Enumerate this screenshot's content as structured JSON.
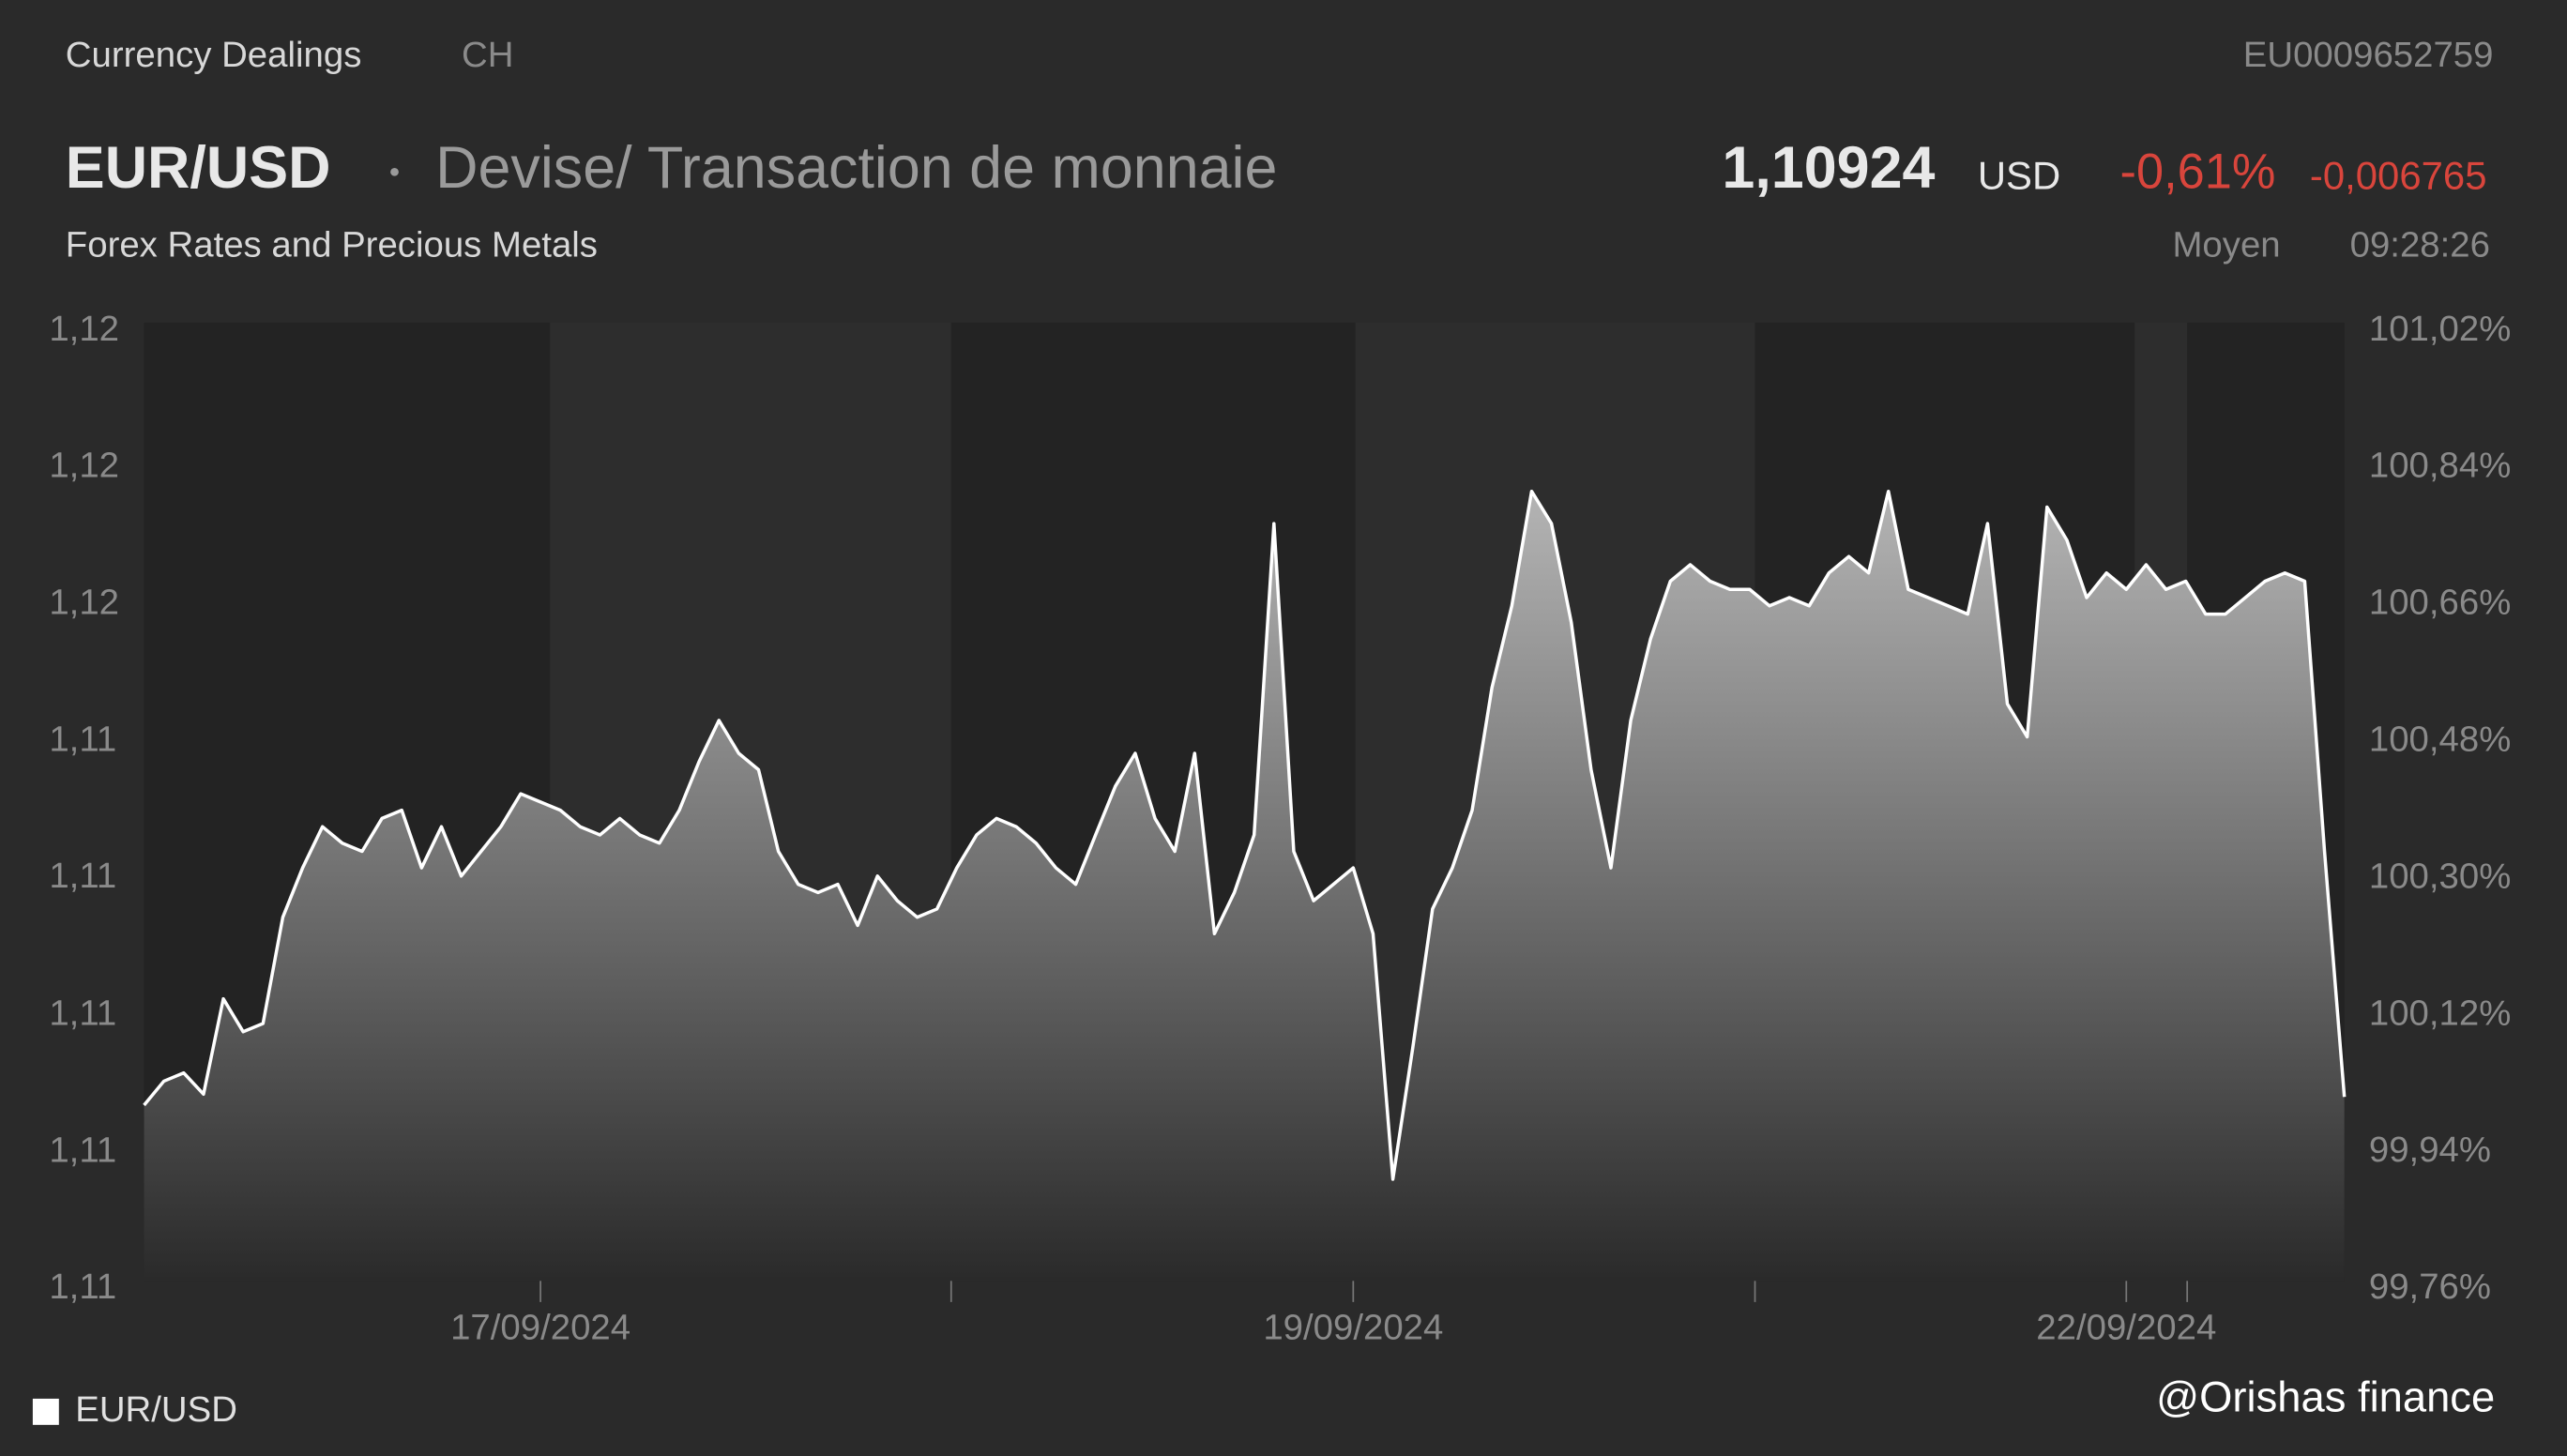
{
  "header": {
    "source": "Currency Dealings",
    "market": "CH",
    "isin": "EU0009652759",
    "symbol": "EUR/USD",
    "description": "Devise/ Transaction de monnaie",
    "subtitle": "Forex Rates and Precious Metals",
    "price": "1,10924",
    "currency": "USD",
    "change_pct": "-0,61%",
    "change_abs": "-0,006765",
    "price_type": "Moyen",
    "time": "09:28:26"
  },
  "watermark": "@Orishas finance",
  "chart_data": {
    "type": "area",
    "categories": [
      null,
      null,
      null,
      null,
      null,
      null,
      null,
      null,
      null,
      null,
      null,
      null,
      null,
      null,
      null,
      null,
      null,
      null,
      null,
      null,
      "17/09/2024",
      null,
      null,
      null,
      null,
      null,
      null,
      null,
      null,
      null,
      null,
      null,
      null,
      null,
      null,
      null,
      null,
      null,
      null,
      null,
      null,
      null,
      null,
      null,
      null,
      null,
      null,
      null,
      null,
      null,
      null,
      null,
      null,
      null,
      null,
      null,
      null,
      null,
      null,
      null,
      null,
      "19/09/2024",
      null,
      null,
      null,
      null,
      null,
      null,
      null,
      null,
      null,
      null,
      null,
      null,
      null,
      null,
      null,
      null,
      null,
      null,
      null,
      null,
      null,
      null,
      null,
      null,
      null,
      null,
      null,
      null,
      null,
      null,
      null,
      null,
      null,
      null,
      null,
      null,
      null,
      null,
      "22/09/2024",
      null,
      null,
      null,
      null,
      null,
      null,
      null,
      null,
      null,
      null,
      null
    ],
    "series": [
      {
        "name": "EUR/USD",
        "color": "#ffffff",
        "values": [
          1.10902,
          1.10937,
          1.10949,
          1.10918,
          1.11057,
          1.11009,
          1.11021,
          1.11176,
          1.11248,
          1.11308,
          1.11284,
          1.11272,
          1.1132,
          1.11332,
          1.11248,
          1.11308,
          1.11236,
          1.11272,
          1.11308,
          1.11356,
          1.11344,
          1.11332,
          1.11308,
          1.11296,
          1.1132,
          1.11296,
          1.11284,
          1.11332,
          1.11403,
          1.11463,
          1.11415,
          1.11391,
          1.11272,
          1.11224,
          1.11212,
          1.11224,
          1.11164,
          1.11236,
          1.112,
          1.11176,
          1.11188,
          1.11248,
          1.11296,
          1.1132,
          1.11308,
          1.11284,
          1.11248,
          1.11224,
          1.11296,
          1.11367,
          1.11415,
          1.1132,
          1.11272,
          1.11415,
          1.11152,
          1.11212,
          1.11296,
          1.1175,
          1.11272,
          1.112,
          1.11224,
          1.11248,
          1.11152,
          1.10794,
          1.10985,
          1.11188,
          1.11248,
          1.11332,
          1.11511,
          1.1163,
          1.11797,
          1.1175,
          1.11606,
          1.11391,
          1.11248,
          1.11463,
          1.11582,
          1.11666,
          1.1169,
          1.11666,
          1.11654,
          1.11654,
          1.1163,
          1.11642,
          1.1163,
          1.11678,
          1.11702,
          1.11678,
          1.11797,
          1.11654,
          1.11642,
          1.1163,
          1.11618,
          1.1175,
          1.11487,
          1.11439,
          1.11774,
          1.11726,
          1.11642,
          1.11678,
          1.11654,
          1.1169,
          1.11654,
          1.11666,
          1.11618,
          1.11618,
          1.11642,
          1.11666,
          1.11678,
          1.11666,
          1.11272,
          1.10914
        ]
      }
    ],
    "ylim": [
      1.10634,
      1.12031
    ],
    "yticks": [
      {
        "value": 1.10634,
        "label": "1,11"
      },
      {
        "value": 1.10833,
        "label": "1,11"
      },
      {
        "value": 1.11033,
        "label": "1,11"
      },
      {
        "value": 1.11233,
        "label": "1,11"
      },
      {
        "value": 1.11432,
        "label": "1,11"
      },
      {
        "value": 1.11632,
        "label": "1,12"
      },
      {
        "value": 1.11832,
        "label": "1,12"
      },
      {
        "value": 1.12031,
        "label": "1,12"
      }
    ],
    "y2lim": [
      99.76,
      101.02
    ],
    "y2ticks": [
      {
        "value": 99.76,
        "label": "99,76%"
      },
      {
        "value": 99.94,
        "label": "99,94%"
      },
      {
        "value": 100.12,
        "label": "100,12%"
      },
      {
        "value": 100.3,
        "label": "100,30%"
      },
      {
        "value": 100.48,
        "label": "100,48%"
      },
      {
        "value": 100.66,
        "label": "100,66%"
      },
      {
        "value": 100.84,
        "label": "100,84%"
      },
      {
        "value": 101.02,
        "label": "101,02%"
      }
    ],
    "legend": "bottom-left"
  }
}
